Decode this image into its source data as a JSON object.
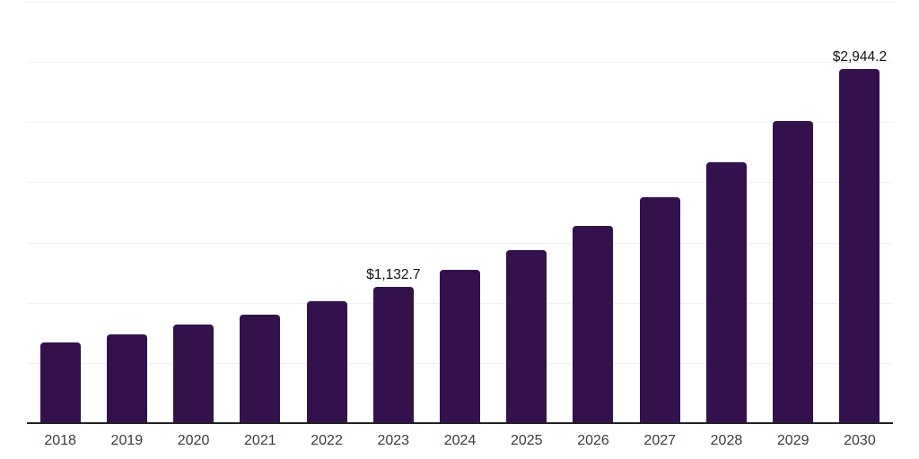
{
  "chart_data": {
    "type": "bar",
    "title": "",
    "xlabel": "",
    "ylabel": "",
    "categories": [
      "2018",
      "2019",
      "2020",
      "2021",
      "2022",
      "2023",
      "2024",
      "2025",
      "2026",
      "2027",
      "2028",
      "2029",
      "2030"
    ],
    "values": [
      670,
      736,
      817,
      905,
      1016,
      1132.7,
      1273,
      1435,
      1641,
      1877,
      2164,
      2510,
      2944.2
    ],
    "data_labels": [
      {
        "index": 5,
        "text": "$1,132.7"
      },
      {
        "index": 12,
        "text": "$2,944.2"
      }
    ],
    "ylim": [
      0,
      3500
    ],
    "gridline_step": 500,
    "grid": "horizontal-only",
    "y_axis_tick_labels_visible": false,
    "legend_position": "none",
    "bar_corner_radius_px": 4
  },
  "colors": {
    "background": "#ffffff",
    "bar": "#33114d",
    "gridline": "#f0f0f0",
    "axis_line": "#222222",
    "tick_label": "#373d3f",
    "value_label": "#111111"
  }
}
